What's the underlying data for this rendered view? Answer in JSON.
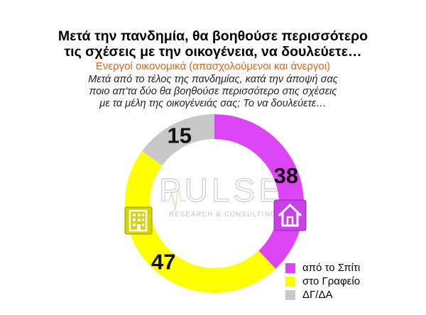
{
  "header": {
    "title_line1": "Μετά την πανδημία, θα βοηθούσε περισσότερο",
    "title_line2": "τις σχέσεις με την οικογένεια, να δουλεύετε…",
    "subtitle": "Ενεργοί οικονομικά  (απασχολούμενοι και άνεργοι)",
    "question_line1": "Μετά από το τέλος της πανδημίας, κατά την άποψή σας",
    "question_line2": "ποιο απ'τα δύο θα βοηθούσε περισσότερο στις σχέσεις",
    "question_line3": "με τα μέλη της οικογένειάς σας; Το να δουλεύετε…"
  },
  "watermark": {
    "brand": "PULSE",
    "tagline": "RESEARCH & CONSULTING"
  },
  "icons": [
    "office-building-icon",
    "house-icon"
  ],
  "chart_data": {
    "type": "pie",
    "donut": true,
    "categories": [
      "από το Σπίτι",
      "στο Γραφείο",
      "ΔΓ/ΔΑ"
    ],
    "values": [
      38,
      47,
      15
    ],
    "colors": [
      "#dd44f5",
      "#ffff00",
      "#c8c8c8"
    ],
    "legend_position": "bottom-right"
  }
}
